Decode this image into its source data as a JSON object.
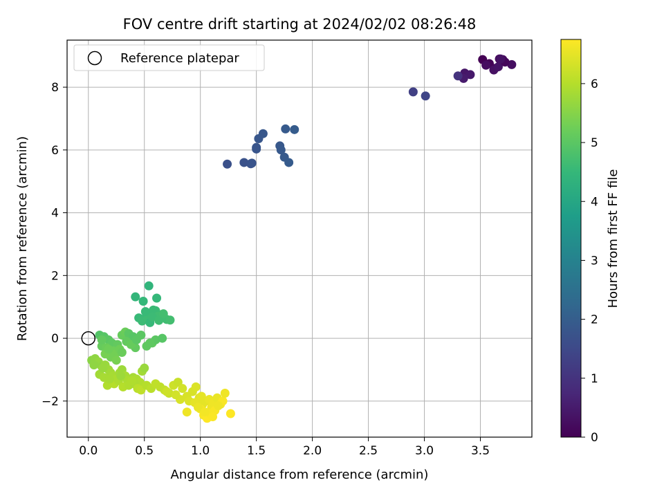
{
  "chart_data": {
    "type": "scatter",
    "title": "FOV centre drift starting at 2024/02/02 08:26:48",
    "xlabel": "Angular distance from reference (arcmin)",
    "ylabel": "Rotation from reference (arcmin)",
    "xlim": [
      -0.19,
      3.96
    ],
    "ylim": [
      -3.15,
      9.5
    ],
    "xticks": [
      0.0,
      0.5,
      1.0,
      1.5,
      2.0,
      2.5,
      3.0,
      3.5
    ],
    "xtick_labels": [
      "0.0",
      "0.5",
      "1.0",
      "1.5",
      "2.0",
      "2.5",
      "3.0",
      "3.5"
    ],
    "yticks": [
      -2,
      0,
      2,
      4,
      6,
      8
    ],
    "ytick_labels": [
      "−2",
      "0",
      "2",
      "4",
      "6",
      "8"
    ],
    "grid": true,
    "legend": {
      "placement": "top-left",
      "entries": [
        "Reference platepar"
      ]
    },
    "reference_point": {
      "x": 0.0,
      "y": 0.0
    },
    "colorbar": {
      "label": "Hours from first FF file",
      "range": [
        0,
        6.75
      ],
      "ticks": [
        0,
        1,
        2,
        3,
        4,
        5,
        6
      ],
      "tick_labels": [
        "0",
        "1",
        "2",
        "3",
        "4",
        "5",
        "6"
      ],
      "colormap": "viridis"
    },
    "colormap_stops": [
      "#440154",
      "#482878",
      "#3e4989",
      "#31688e",
      "#26828e",
      "#1f9e89",
      "#35b779",
      "#6ece58",
      "#b5de2b",
      "#fde725"
    ],
    "series": [
      {
        "x": [
          3.52,
          3.58,
          3.63,
          3.67,
          3.7,
          3.78,
          3.62,
          3.66,
          3.36,
          3.41,
          3.35,
          3.72,
          3.55,
          3.68
        ],
        "y": [
          8.88,
          8.75,
          8.6,
          8.9,
          8.88,
          8.72,
          8.55,
          8.65,
          8.45,
          8.4,
          8.28,
          8.8,
          8.7,
          8.9
        ],
        "c": [
          0.0,
          0.05,
          0.1,
          0.15,
          0.2,
          0.25,
          0.3,
          0.35,
          0.4,
          0.45,
          0.5,
          0.12,
          0.22,
          0.32
        ]
      },
      {
        "x": [
          3.3,
          2.9,
          3.01
        ],
        "y": [
          8.36,
          7.85,
          7.72
        ],
        "c": [
          1.0,
          1.3,
          1.4
        ]
      },
      {
        "x": [
          1.24,
          1.39,
          1.45,
          1.46,
          1.5,
          1.5,
          1.52,
          1.56,
          1.71,
          1.72,
          1.75,
          1.76,
          1.79,
          1.84
        ],
        "y": [
          5.55,
          5.6,
          5.56,
          5.58,
          6.08,
          6.03,
          6.36,
          6.52,
          6.13,
          6.0,
          5.77,
          6.67,
          5.6,
          6.65
        ],
        "c": [
          1.7,
          1.72,
          1.74,
          1.76,
          1.78,
          1.8,
          1.82,
          1.84,
          1.86,
          1.88,
          1.9,
          1.92,
          1.94,
          1.96
        ]
      },
      {
        "x": [
          0.54,
          0.42,
          0.61,
          0.49,
          0.45,
          0.52,
          0.56,
          0.6,
          0.65,
          0.7,
          0.73,
          0.48,
          0.53,
          0.58,
          0.62,
          0.51,
          0.55,
          0.57,
          0.63,
          0.67
        ],
        "y": [
          1.67,
          1.32,
          1.28,
          1.18,
          0.65,
          0.72,
          0.8,
          0.88,
          0.75,
          0.6,
          0.58,
          0.55,
          0.62,
          0.9,
          0.7,
          0.85,
          0.5,
          0.68,
          0.57,
          0.78
        ],
        "c": [
          4.4,
          4.45,
          4.5,
          4.5,
          4.55,
          4.55,
          4.6,
          4.6,
          4.6,
          4.65,
          4.7,
          4.6,
          4.62,
          4.58,
          4.66,
          4.55,
          4.52,
          4.6,
          4.65,
          4.7
        ]
      },
      {
        "x": [
          0.1,
          0.14,
          0.18,
          0.21,
          0.26,
          0.3,
          0.33,
          0.36,
          0.4,
          0.42,
          0.47,
          0.52,
          0.57,
          0.6,
          0.66,
          0.12,
          0.16,
          0.22,
          0.24,
          0.28,
          0.34,
          0.38,
          0.43,
          0.55,
          0.2,
          0.3,
          0.15,
          0.25,
          0.18,
          0.12
        ],
        "y": [
          0.1,
          0.05,
          -0.05,
          -0.15,
          -0.2,
          0.1,
          0.2,
          0.15,
          0.05,
          -0.3,
          0.1,
          -0.25,
          -0.15,
          -0.05,
          0.0,
          -0.25,
          -0.3,
          -0.4,
          -0.5,
          -0.35,
          -0.1,
          -0.2,
          -0.05,
          -0.15,
          -0.6,
          -0.45,
          -0.5,
          -0.7,
          -0.35,
          -0.05
        ],
        "c": [
          4.9,
          4.95,
          5.0,
          5.05,
          5.1,
          5.15,
          5.2,
          5.0,
          4.95,
          5.1,
          5.0,
          5.05,
          5.1,
          5.0,
          4.95,
          5.15,
          5.2,
          5.25,
          5.3,
          5.25,
          5.1,
          5.15,
          5.0,
          5.05,
          5.3,
          5.2,
          5.35,
          5.35,
          5.25,
          5.1
        ]
      },
      {
        "x": [
          0.03,
          0.06,
          0.09,
          0.12,
          0.15,
          0.18,
          0.2,
          0.22,
          0.25,
          0.28,
          0.3,
          0.33,
          0.35,
          0.38,
          0.4,
          0.43,
          0.46,
          0.48,
          0.5,
          0.05,
          0.1,
          0.14,
          0.17,
          0.23,
          0.27,
          0.31,
          0.36,
          0.41,
          0.44,
          0.47,
          0.19,
          0.29,
          0.39,
          0.13
        ],
        "y": [
          -0.7,
          -0.65,
          -0.75,
          -0.9,
          -0.85,
          -1.0,
          -1.1,
          -1.2,
          -1.3,
          -1.1,
          -1.0,
          -1.2,
          -1.35,
          -1.4,
          -1.25,
          -1.3,
          -1.4,
          -1.05,
          -0.95,
          -0.85,
          -1.15,
          -1.25,
          -1.5,
          -1.45,
          -1.35,
          -1.55,
          -1.5,
          -1.45,
          -1.6,
          -1.65,
          -1.3,
          -1.2,
          -1.35,
          -0.95
        ],
        "c": [
          5.55,
          5.6,
          5.65,
          5.6,
          5.7,
          5.75,
          5.8,
          5.85,
          5.9,
          5.8,
          5.75,
          5.85,
          5.9,
          5.95,
          5.85,
          5.9,
          5.95,
          5.8,
          5.7,
          5.6,
          5.8,
          5.85,
          5.95,
          6.0,
          5.9,
          6.0,
          5.95,
          5.9,
          6.05,
          6.1,
          5.85,
          5.75,
          5.95,
          5.7
        ]
      },
      {
        "x": [
          0.52,
          0.56,
          0.6,
          0.64,
          0.68,
          0.72,
          0.76,
          0.8,
          0.84,
          0.88,
          0.9,
          0.93,
          0.96,
          0.99,
          1.02,
          1.05,
          1.08,
          1.1,
          1.12,
          1.15,
          1.18,
          1.2,
          1.22,
          1.27,
          0.88,
          0.95,
          1.0,
          1.03,
          1.06,
          1.13,
          1.16,
          1.09,
          0.82,
          0.7,
          0.78,
          0.98,
          1.01,
          1.04,
          1.11
        ],
        "y": [
          -1.5,
          -1.6,
          -1.45,
          -1.55,
          -1.65,
          -1.75,
          -1.5,
          -1.4,
          -1.6,
          -1.85,
          -2.0,
          -1.7,
          -1.55,
          -1.9,
          -2.1,
          -2.0,
          -1.95,
          -2.2,
          -2.05,
          -1.9,
          -2.1,
          -2.0,
          -1.75,
          -2.4,
          -2.35,
          -2.05,
          -2.25,
          -2.45,
          -2.55,
          -2.3,
          -2.15,
          -2.4,
          -1.95,
          -1.7,
          -1.8,
          -2.2,
          -1.85,
          -2.35,
          -2.5
        ],
        "c": [
          6.0,
          6.05,
          6.1,
          6.1,
          6.15,
          6.2,
          6.25,
          6.2,
          6.3,
          6.35,
          6.4,
          6.35,
          6.4,
          6.45,
          6.5,
          6.5,
          6.55,
          6.6,
          6.6,
          6.55,
          6.65,
          6.7,
          6.6,
          6.75,
          6.6,
          6.5,
          6.65,
          6.7,
          6.75,
          6.7,
          6.6,
          6.7,
          6.35,
          6.25,
          6.3,
          6.55,
          6.5,
          6.65,
          6.72
        ]
      }
    ]
  }
}
